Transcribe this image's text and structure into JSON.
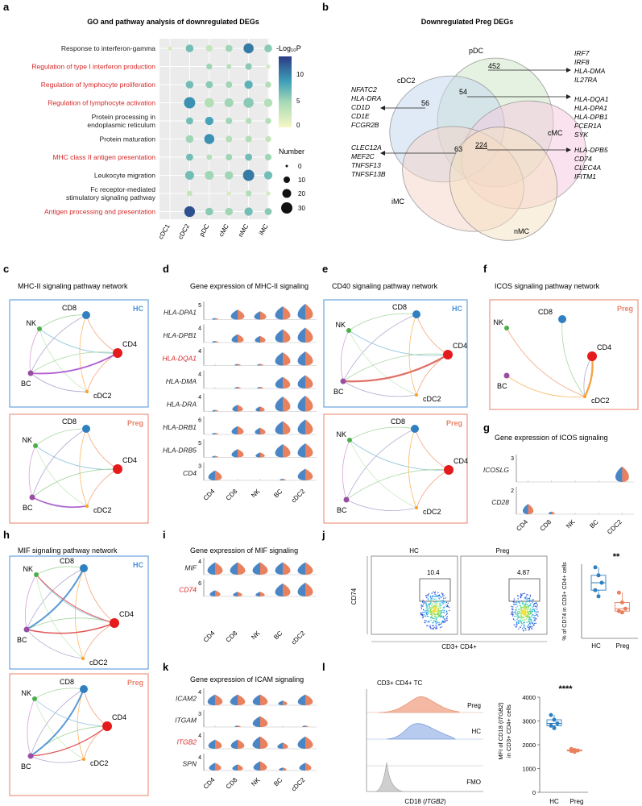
{
  "panel_labels": {
    "a": "a",
    "b": "b",
    "c": "c",
    "d": "d",
    "e": "e",
    "f": "f",
    "g": "g",
    "h": "h",
    "i": "i",
    "j": "j",
    "k": "k",
    "l": "l"
  },
  "panel_a": {
    "title": "GO and pathway analysis of downregulated DEGs",
    "terms": [
      {
        "label": "Response to interferon-gamma",
        "red": false
      },
      {
        "label": "Regulation of type I interferon production",
        "red": true
      },
      {
        "label": "Regulation of lymphocyte proliferation",
        "red": true
      },
      {
        "label": "Regulation of lymphocyte activation",
        "red": true
      },
      {
        "label": "Protein processing in",
        "label2": "endoplasmic reticulum",
        "red": false
      },
      {
        "label": "Protein maturation",
        "red": false
      },
      {
        "label": "MHC class II antigen presentation",
        "red": true
      },
      {
        "label": "Leukocyte migration",
        "red": false
      },
      {
        "label": "Fc receptor-mediated",
        "label2": "stimulatory signaling pathway",
        "red": false
      },
      {
        "label": "Antigen processing and presentation",
        "red": true
      }
    ],
    "columns": [
      "cDC1",
      "cDC2",
      "pDC",
      "cMC",
      "nMC",
      "iMC"
    ],
    "colorbar_title": "-Log₁₀P",
    "colorbar_ticks": [
      "10",
      "5",
      "0"
    ],
    "size_title": "Number",
    "size_ticks": [
      "0",
      "10",
      "20",
      "30"
    ]
  },
  "panel_b": {
    "title": "Downregulated Preg DEGs",
    "sets": {
      "pDC": "pDC",
      "cDC2": "cDC2",
      "cMC": "cMC",
      "iMC": "iMC",
      "nMC": "nMC"
    },
    "counts": {
      "pdc": "452",
      "cdc2": "56",
      "center": "54",
      "cmc_dc": "63",
      "all": "224"
    },
    "genes_right1": [
      "IRF7",
      "IRF8",
      "HLA-DMA",
      "IL27RA"
    ],
    "genes_right2": [
      "HLA-DQA1",
      "HLA-DPA1",
      "HLA-DPB1",
      "FCER1A",
      "SYK"
    ],
    "genes_right3": [
      "HLA-DPB5",
      "CD74",
      "CLEC4A",
      "IFITM1"
    ],
    "genes_left1": [
      "NFATC2",
      "HLA-DRA",
      "CD1D",
      "CD1E",
      "FCGR2B"
    ],
    "genes_left2": [
      "CLEC12A",
      "MEF2C",
      "TNFSF13",
      "TNFSF13B"
    ]
  },
  "networks": {
    "c_title": "MHC-II signaling pathway network",
    "e_title": "CD40 signaling pathway network",
    "f_title": "ICOS signaling pathway network",
    "h_title": "MIF signaling pathway network",
    "hc": "HC",
    "preg": "Preg",
    "nodes": {
      "cd8": "CD8",
      "nk": "NK",
      "cd4": "CD4",
      "bc": "BC",
      "cdc2": "cDC2"
    }
  },
  "panel_d": {
    "title": "Gene expression of MHC-II signaling",
    "genes": [
      {
        "name": "HLA-DPA1",
        "max": "5",
        "red": false
      },
      {
        "name": "HLA-DPB1",
        "max": "4",
        "red": false
      },
      {
        "name": "HLA-DQA1",
        "max": "4",
        "red": true
      },
      {
        "name": "HLA-DMA",
        "max": "4",
        "red": false
      },
      {
        "name": "HLA-DRA",
        "max": "4",
        "red": false
      },
      {
        "name": "HLA-DRB1",
        "max": "6",
        "red": false
      },
      {
        "name": "HLA-DRB5",
        "max": "5",
        "red": false
      },
      {
        "name": "CD4",
        "max": "3",
        "red": false
      }
    ],
    "cells": [
      "CD4",
      "CD8",
      "NK",
      "BC",
      "cDC2"
    ]
  },
  "panel_g": {
    "title": "Gene expression of ICOS signaling",
    "genes": [
      {
        "name": "ICOSLG",
        "max": "3"
      },
      {
        "name": "CD28",
        "max": "2"
      }
    ],
    "cells": [
      "CD4",
      "CD8",
      "NK",
      "BC",
      "CDC2"
    ]
  },
  "panel_i": {
    "title": "Gene expression of MIF signaling",
    "genes": [
      {
        "name": "MIF",
        "max": "4",
        "red": false
      },
      {
        "name": "CD74",
        "max": "6",
        "red": true
      }
    ],
    "cells": [
      "CD4",
      "CD8",
      "NK",
      "BC",
      "cDC2"
    ]
  },
  "panel_k": {
    "title": "Gene expression of ICAM signaling",
    "genes": [
      {
        "name": "ICAM2",
        "max": "4",
        "red": false
      },
      {
        "name": "ITGAM",
        "max": "3",
        "red": false
      },
      {
        "name": "ITGB2",
        "max": "4",
        "red": true
      },
      {
        "name": "SPN",
        "max": "4",
        "red": false
      }
    ],
    "cells": [
      "CD4",
      "CD8",
      "NK",
      "BC",
      "cDC2"
    ]
  },
  "panel_j": {
    "hc": "HC",
    "preg": "Preg",
    "hc_pct": "10.4",
    "preg_pct": "4.87",
    "y_axis": "CD74",
    "x_axis": "CD3+ CD4+",
    "box_ylabel": "% of CD74 in CD3+ CD4+ cells",
    "sig": "**",
    "groups": [
      "HC",
      "Preg"
    ]
  },
  "panel_l": {
    "title": "CD3+ CD4+ TC",
    "tracks": [
      "Preg",
      "HC",
      "FMO"
    ],
    "x_axis_a": "CD18 (",
    "x_axis_gene": "ITGB2",
    "x_axis_b": ")",
    "ylabel_a": "MFI of CD18 (",
    "ylabel_gene": "ITGB2",
    "ylabel_b": ")",
    "ylabel2": "in CD3+ CD4+ cells",
    "y_ticks": [
      "4000",
      "3000",
      "2000",
      "1000",
      "0"
    ],
    "sig": "****",
    "groups": [
      "HC",
      "Preg"
    ]
  },
  "chart_data": [
    {
      "type": "scatter",
      "title": "GO and pathway analysis of downregulated DEGs",
      "x": [
        "cDC1",
        "cDC2",
        "pDC",
        "cMC",
        "nMC",
        "iMC"
      ],
      "series": [
        {
          "name": "Response to interferon-gamma",
          "neglog10p": [
            2,
            7,
            3,
            5,
            11,
            6
          ],
          "number": [
            6,
            18,
            14,
            16,
            26,
            18
          ]
        },
        {
          "name": "Regulation of type I interferon production",
          "neglog10p": [
            null,
            null,
            5,
            4,
            6,
            2
          ],
          "number": [
            null,
            null,
            12,
            8,
            14,
            6
          ]
        },
        {
          "name": "Regulation of lymphocyte proliferation",
          "neglog10p": [
            null,
            7,
            6,
            5,
            8,
            4
          ],
          "number": [
            null,
            18,
            16,
            14,
            20,
            12
          ]
        },
        {
          "name": "Regulation of lymphocyte activation",
          "neglog10p": [
            null,
            10,
            4,
            5,
            6,
            4
          ],
          "number": [
            null,
            30,
            24,
            22,
            26,
            20
          ]
        },
        {
          "name": "Protein processing in endoplasmic reticulum",
          "neglog10p": [
            null,
            7,
            9,
            5,
            4,
            4
          ],
          "number": [
            null,
            16,
            20,
            14,
            12,
            12
          ]
        },
        {
          "name": "Protein maturation",
          "neglog10p": [
            null,
            5,
            10,
            4,
            4,
            3
          ],
          "number": [
            null,
            18,
            26,
            14,
            14,
            12
          ]
        },
        {
          "name": "MHC class II antigen presentation",
          "neglog10p": [
            null,
            7,
            4,
            5,
            7,
            5
          ],
          "number": [
            null,
            16,
            10,
            14,
            16,
            14
          ]
        },
        {
          "name": "Leukocyte migration",
          "neglog10p": [
            null,
            7,
            5,
            5,
            11,
            7
          ],
          "number": [
            null,
            22,
            22,
            20,
            30,
            20
          ]
        },
        {
          "name": "Fc receptor-mediated stimulatory signaling pathway",
          "neglog10p": [
            null,
            3,
            null,
            2,
            4,
            2
          ],
          "number": [
            null,
            10,
            null,
            6,
            12,
            6
          ]
        },
        {
          "name": "Antigen processing and presentation",
          "neglog10p": [
            null,
            13,
            6,
            5,
            7,
            6
          ],
          "number": [
            null,
            28,
            18,
            18,
            20,
            16
          ]
        }
      ]
    },
    {
      "type": "bar",
      "title": "% of CD74 in CD3+ CD4+ cells",
      "categories": [
        "HC",
        "Preg"
      ],
      "points": {
        "HC": [
          11.5,
          10.2,
          9.0,
          7.8,
          6.8
        ],
        "Preg": [
          7.4,
          5.8,
          4.8,
          4.4,
          4.2
        ]
      },
      "ylim": [
        0,
        12
      ]
    },
    {
      "type": "bar",
      "title": "MFI of CD18 (ITGB2) in CD3+ CD4+ cells",
      "categories": [
        "HC",
        "Preg"
      ],
      "points": {
        "HC": [
          3250,
          3050,
          2900,
          2800,
          2700
        ],
        "Preg": [
          1820,
          1780,
          1760,
          1740,
          1700
        ]
      },
      "ylim": [
        0,
        4000
      ]
    }
  ]
}
